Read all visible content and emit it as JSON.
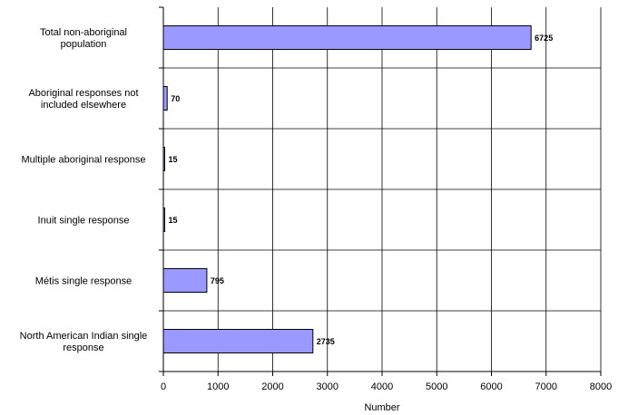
{
  "chart_data": {
    "type": "bar",
    "orientation": "horizontal",
    "categories": [
      [
        "Total non-aboriginal",
        "population"
      ],
      [
        "Aboriginal responses not",
        "included elsewhere"
      ],
      [
        "Multiple aboriginal response"
      ],
      [
        "Inuit single response"
      ],
      [
        "Métis single response"
      ],
      [
        "North American Indian single",
        "response"
      ]
    ],
    "values": [
      6725,
      70,
      15,
      15,
      795,
      2735
    ],
    "data_labels": [
      "6725",
      "70",
      "15",
      "15",
      "795",
      "2735"
    ],
    "xlabel": "Number",
    "ylabel": "",
    "title": "",
    "xlim": [
      0,
      8000
    ],
    "x_ticks": [
      0,
      1000,
      2000,
      3000,
      4000,
      5000,
      6000,
      7000,
      8000
    ],
    "x_tick_labels": [
      "0",
      "1000",
      "2000",
      "3000",
      "4000",
      "5000",
      "6000",
      "7000",
      "8000"
    ],
    "grid": true,
    "legend": "none",
    "colors": {
      "bar_fill": "#9999ff",
      "bar_stroke": "#000000",
      "grid": "#000000",
      "text": "#000000"
    }
  }
}
